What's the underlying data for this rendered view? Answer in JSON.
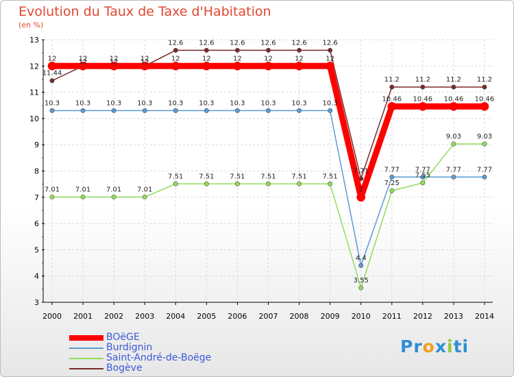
{
  "chart_data": {
    "type": "line",
    "title": "Evolution du Taux de Taxe d'Habitation",
    "subtitle": "(en %)",
    "x": [
      "2000",
      "2001",
      "2002",
      "2003",
      "2004",
      "2005",
      "2006",
      "2007",
      "2008",
      "2009",
      "2010",
      "2011",
      "2012",
      "2013",
      "2014"
    ],
    "y_ticks": [
      "3",
      "4",
      "5",
      "6",
      "7",
      "8",
      "9",
      "10",
      "11",
      "12",
      "13"
    ],
    "ylim": [
      3,
      13
    ],
    "series": [
      {
        "name": "BOëGE",
        "color": "#ff0000",
        "values": [
          12,
          12,
          12,
          12,
          12,
          12,
          12,
          12,
          12,
          12,
          7,
          10.46,
          10.46,
          10.46,
          10.46
        ],
        "labels": [
          "12",
          "12",
          "12",
          "12",
          "12",
          "12",
          "12",
          "12",
          "12",
          "12",
          "7",
          "10.46",
          "10.46",
          "10.46",
          "10.46"
        ]
      },
      {
        "name": "Burdignin",
        "color": "#5a9bd5",
        "values": [
          10.3,
          10.3,
          10.3,
          10.3,
          10.3,
          10.3,
          10.3,
          10.3,
          10.3,
          10.3,
          4.4,
          7.77,
          7.77,
          7.77,
          7.77
        ],
        "labels": [
          "10.3",
          "10.3",
          "10.3",
          "10.3",
          "10.3",
          "10.3",
          "10.3",
          "10.3",
          "10.3",
          "10.3",
          "4.4",
          "7.77",
          "7.77",
          "7.77",
          "7.77"
        ]
      },
      {
        "name": "Saint-André-de-Boëge",
        "color": "#90dc5a",
        "values": [
          7.01,
          7.01,
          7.01,
          7.01,
          7.51,
          7.51,
          7.51,
          7.51,
          7.51,
          7.51,
          3.55,
          7.25,
          7.55,
          9.03,
          9.03
        ],
        "labels": [
          "7.01",
          "7.01",
          "7.01",
          "7.01",
          "7.51",
          "7.51",
          "7.51",
          "7.51",
          "7.51",
          "7.51",
          "3.55",
          "7.25",
          "7.55",
          "9.03",
          "9.03"
        ]
      },
      {
        "name": "Bogève",
        "color": "#7a2828",
        "values": [
          11.44,
          12,
          12,
          12,
          12.6,
          12.6,
          12.6,
          12.6,
          12.6,
          12.6,
          7.71,
          11.2,
          11.2,
          11.2,
          11.2
        ],
        "labels": [
          "11.44",
          "12",
          "12",
          "12",
          "12.6",
          "12.6",
          "12.6",
          "12.6",
          "12.6",
          "12.6",
          "7.71",
          "11.2",
          "11.2",
          "11.2",
          "11.2"
        ]
      }
    ]
  },
  "logo": {
    "parts": [
      "Pr",
      "o",
      "x",
      "i",
      "ti"
    ]
  }
}
